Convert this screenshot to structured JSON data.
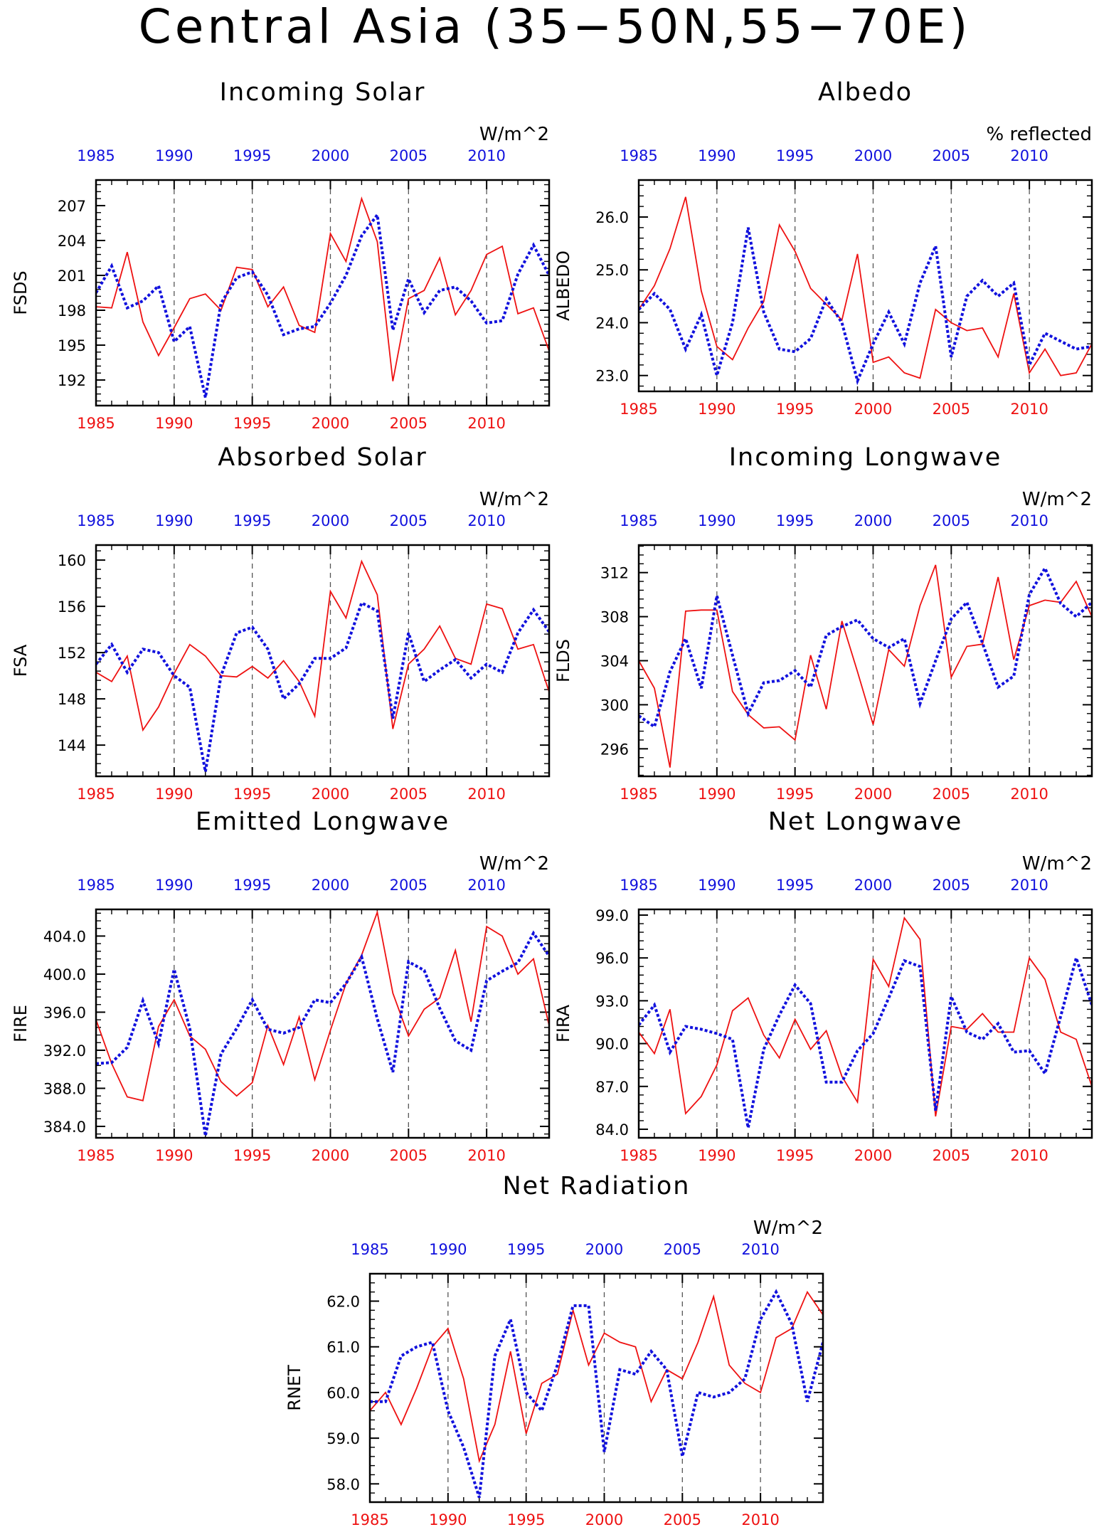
{
  "figure": {
    "title": "Central Asia (35−50N,55−70E)"
  },
  "colors": {
    "series1": "#ee1111",
    "series2": "#1111dd",
    "axis": "#000000"
  },
  "chart_data": [
    {
      "type": "line",
      "title": "Incoming Solar",
      "unit_label": "W/m^2",
      "ylabel": "FSDS",
      "xlim": [
        1985,
        2014
      ],
      "ylim": [
        189.8,
        209.2
      ],
      "yticks": [
        192,
        195,
        198,
        201,
        204,
        207
      ],
      "ytick_labels": [
        "192",
        "195",
        "198",
        "201",
        "204",
        "207"
      ],
      "xticks": [
        1985,
        1990,
        1995,
        2000,
        2005,
        2010
      ],
      "xtick_labels": [
        "1985",
        "1990",
        "1995",
        "2000",
        "2005",
        "2010"
      ],
      "gridlines_x": [
        1990,
        1995,
        2000,
        2005,
        2010
      ],
      "x": [
        1985,
        1986,
        1987,
        1988,
        1989,
        1990,
        1991,
        1992,
        1993,
        1994,
        1995,
        1996,
        1997,
        1998,
        1999,
        2000,
        2001,
        2002,
        2003,
        2004,
        2005,
        2006,
        2007,
        2008,
        2009,
        2010,
        2011,
        2012,
        2013,
        2014
      ],
      "series": [
        {
          "style": "solid",
          "values": [
            198.3,
            198.2,
            203.0,
            197.0,
            194.1,
            196.5,
            199.0,
            199.4,
            198.0,
            201.7,
            201.5,
            198.3,
            200.0,
            196.7,
            196.1,
            204.6,
            202.2,
            207.6,
            203.9,
            191.9,
            199.0,
            199.7,
            202.5,
            197.6,
            199.7,
            202.8,
            203.5,
            197.7,
            198.2,
            194.5
          ]
        },
        {
          "style": "dotted",
          "values": [
            199.5,
            201.8,
            198.2,
            198.8,
            200.1,
            195.3,
            196.6,
            190.5,
            198.6,
            200.8,
            201.3,
            199.3,
            195.9,
            196.4,
            196.6,
            198.6,
            201.0,
            204.4,
            206.2,
            196.3,
            200.7,
            197.8,
            199.7,
            200.0,
            198.8,
            196.9,
            197.1,
            201.1,
            203.6,
            201.0
          ]
        }
      ]
    },
    {
      "type": "line",
      "title": "Albedo",
      "unit_label": "% reflected",
      "ylabel": "ALBEDO",
      "xlim": [
        1985,
        2014
      ],
      "ylim": [
        22.7,
        26.7
      ],
      "yticks": [
        23.0,
        24.0,
        25.0,
        26.0
      ],
      "ytick_labels": [
        "23.0",
        "24.0",
        "25.0",
        "26.0"
      ],
      "xticks": [
        1985,
        1990,
        1995,
        2000,
        2005,
        2010
      ],
      "xtick_labels": [
        "1985",
        "1990",
        "1995",
        "2000",
        "2005",
        "2010"
      ],
      "gridlines_x": [
        1990,
        1995,
        2000,
        2005,
        2010
      ],
      "x": [
        1985,
        1986,
        1987,
        1988,
        1989,
        1990,
        1991,
        1992,
        1993,
        1994,
        1995,
        1996,
        1997,
        1998,
        1999,
        2000,
        2001,
        2002,
        2003,
        2004,
        2005,
        2006,
        2007,
        2008,
        2009,
        2010,
        2011,
        2012,
        2013,
        2014
      ],
      "series": [
        {
          "style": "solid",
          "values": [
            24.25,
            24.7,
            25.4,
            26.38,
            24.6,
            23.55,
            23.3,
            23.9,
            24.4,
            25.85,
            25.35,
            24.65,
            24.35,
            24.05,
            25.3,
            23.25,
            23.35,
            23.05,
            22.95,
            24.25,
            24.0,
            23.85,
            23.9,
            23.35,
            24.55,
            23.05,
            23.5,
            23.0,
            23.05,
            23.6
          ]
        },
        {
          "style": "dotted",
          "values": [
            24.25,
            24.55,
            24.25,
            23.5,
            24.15,
            23.0,
            24.0,
            25.8,
            24.2,
            23.5,
            23.45,
            23.7,
            24.45,
            24.0,
            22.9,
            23.6,
            24.2,
            23.6,
            24.75,
            25.45,
            23.35,
            24.5,
            24.8,
            24.5,
            24.75,
            23.2,
            23.8,
            23.65,
            23.5,
            23.55
          ]
        }
      ]
    },
    {
      "type": "line",
      "title": "Absorbed Solar",
      "unit_label": "W/m^2",
      "ylabel": "FSA",
      "xlim": [
        1985,
        2014
      ],
      "ylim": [
        141.3,
        161.3
      ],
      "yticks": [
        144,
        148,
        152,
        156,
        160
      ],
      "ytick_labels": [
        "144",
        "148",
        "152",
        "156",
        "160"
      ],
      "xticks": [
        1985,
        1990,
        1995,
        2000,
        2005,
        2010
      ],
      "xtick_labels": [
        "1985",
        "1990",
        "1995",
        "2000",
        "2005",
        "2010"
      ],
      "gridlines_x": [
        1990,
        1995,
        2000,
        2005,
        2010
      ],
      "x": [
        1985,
        1986,
        1987,
        1988,
        1989,
        1990,
        1991,
        1992,
        1993,
        1994,
        1995,
        1996,
        1997,
        1998,
        1999,
        2000,
        2001,
        2002,
        2003,
        2004,
        2005,
        2006,
        2007,
        2008,
        2009,
        2010,
        2011,
        2012,
        2013,
        2014
      ],
      "series": [
        {
          "style": "solid",
          "values": [
            150.3,
            149.5,
            151.7,
            145.3,
            147.3,
            150.2,
            152.7,
            151.7,
            150.0,
            149.9,
            150.8,
            149.8,
            151.3,
            149.5,
            146.5,
            157.3,
            155.0,
            159.9,
            157.0,
            145.4,
            151.0,
            152.3,
            154.3,
            151.5,
            151.0,
            156.2,
            155.8,
            152.3,
            152.7,
            148.6
          ]
        },
        {
          "style": "dotted",
          "values": [
            151.0,
            152.7,
            150.3,
            152.3,
            152.0,
            150.0,
            149.0,
            141.7,
            150.0,
            153.7,
            154.2,
            152.3,
            148.0,
            149.3,
            151.5,
            151.5,
            152.4,
            156.3,
            155.6,
            146.3,
            153.7,
            149.5,
            150.5,
            151.4,
            149.8,
            151.0,
            150.3,
            153.7,
            155.7,
            153.8
          ]
        }
      ]
    },
    {
      "type": "line",
      "title": "Incoming Longwave",
      "unit_label": "W/m^2",
      "ylabel": "FLDS",
      "xlim": [
        1985,
        2014
      ],
      "ylim": [
        293.5,
        314.5
      ],
      "yticks": [
        296,
        300,
        304,
        308,
        312
      ],
      "ytick_labels": [
        "296",
        "300",
        "304",
        "308",
        "312"
      ],
      "xticks": [
        1985,
        1990,
        1995,
        2000,
        2005,
        2010
      ],
      "xtick_labels": [
        "1985",
        "1990",
        "1995",
        "2000",
        "2005",
        "2010"
      ],
      "gridlines_x": [
        1990,
        1995,
        2000,
        2005,
        2010
      ],
      "x": [
        1985,
        1986,
        1987,
        1988,
        1989,
        1990,
        1991,
        1992,
        1993,
        1994,
        1995,
        1996,
        1997,
        1998,
        1999,
        2000,
        2001,
        2002,
        2003,
        2004,
        2005,
        2006,
        2007,
        2008,
        2009,
        2010,
        2011,
        2012,
        2013,
        2014
      ],
      "series": [
        {
          "style": "solid",
          "values": [
            304.0,
            301.5,
            294.3,
            308.5,
            308.6,
            308.6,
            301.2,
            299.1,
            297.9,
            298.0,
            296.8,
            304.5,
            299.6,
            307.6,
            303.0,
            298.2,
            305.0,
            303.5,
            309.0,
            312.7,
            302.5,
            305.3,
            305.5,
            311.6,
            304.1,
            309.0,
            309.5,
            309.3,
            311.2,
            308.0
          ]
        },
        {
          "style": "dotted",
          "values": [
            299.0,
            298.0,
            303.0,
            306.0,
            301.5,
            309.9,
            304.5,
            299.2,
            302.0,
            302.2,
            303.1,
            301.6,
            306.3,
            307.1,
            307.7,
            306.0,
            305.2,
            306.0,
            300.1,
            304.0,
            307.8,
            309.3,
            305.6,
            301.6,
            302.6,
            310.0,
            312.4,
            309.2,
            308.0,
            309.3
          ]
        }
      ]
    },
    {
      "type": "line",
      "title": "Emitted Longwave",
      "unit_label": "W/m^2",
      "ylabel": "FIRE",
      "xlim": [
        1985,
        2014
      ],
      "ylim": [
        382.8,
        406.8
      ],
      "yticks": [
        384.0,
        388.0,
        392.0,
        396.0,
        400.0,
        404.0
      ],
      "ytick_labels": [
        "384.0",
        "388.0",
        "392.0",
        "396.0",
        "400.0",
        "404.0"
      ],
      "xticks": [
        1985,
        1990,
        1995,
        2000,
        2005,
        2010
      ],
      "xtick_labels": [
        "1985",
        "1990",
        "1995",
        "2000",
        "2005",
        "2010"
      ],
      "gridlines_x": [
        1990,
        1995,
        2000,
        2005,
        2010
      ],
      "x": [
        1985,
        1986,
        1987,
        1988,
        1989,
        1990,
        1991,
        1992,
        1993,
        1994,
        1995,
        1996,
        1997,
        1998,
        1999,
        2000,
        2001,
        2002,
        2003,
        2004,
        2005,
        2006,
        2007,
        2008,
        2009,
        2010,
        2011,
        2012,
        2013,
        2014
      ],
      "series": [
        {
          "style": "solid",
          "values": [
            395.2,
            390.6,
            387.1,
            386.7,
            394.5,
            397.3,
            393.5,
            392.1,
            388.7,
            387.2,
            388.6,
            394.6,
            390.5,
            395.5,
            388.9,
            394.1,
            399.0,
            402.0,
            406.5,
            398.0,
            393.5,
            396.3,
            397.5,
            402.5,
            395.0,
            405.0,
            404.0,
            400.0,
            401.6,
            394.6
          ]
        },
        {
          "style": "dotted",
          "values": [
            390.6,
            390.7,
            392.3,
            397.2,
            392.7,
            400.5,
            394.3,
            383.0,
            391.6,
            394.3,
            397.3,
            394.2,
            393.8,
            394.4,
            397.3,
            397.0,
            399.0,
            401.8,
            395.3,
            389.7,
            401.3,
            400.4,
            396.4,
            393.0,
            392.0,
            399.3,
            400.3,
            401.2,
            404.3,
            401.9
          ]
        }
      ]
    },
    {
      "type": "line",
      "title": "Net Longwave",
      "unit_label": "W/m^2",
      "ylabel": "FIRA",
      "xlim": [
        1985,
        2014
      ],
      "ylim": [
        83.4,
        99.4
      ],
      "yticks": [
        84.0,
        87.0,
        90.0,
        93.0,
        96.0,
        99.0
      ],
      "ytick_labels": [
        "84.0",
        "87.0",
        "90.0",
        "93.0",
        "96.0",
        "99.0"
      ],
      "xticks": [
        1985,
        1990,
        1995,
        2000,
        2005,
        2010
      ],
      "xtick_labels": [
        "1985",
        "1990",
        "1995",
        "2000",
        "2005",
        "2010"
      ],
      "gridlines_x": [
        1990,
        1995,
        2000,
        2005,
        2010
      ],
      "x": [
        1985,
        1986,
        1987,
        1988,
        1989,
        1990,
        1991,
        1992,
        1993,
        1994,
        1995,
        1996,
        1997,
        1998,
        1999,
        2000,
        2001,
        2002,
        2003,
        2004,
        2005,
        2006,
        2007,
        2008,
        2009,
        2010,
        2011,
        2012,
        2013,
        2014
      ],
      "series": [
        {
          "style": "solid",
          "values": [
            90.8,
            89.3,
            92.4,
            85.1,
            86.3,
            88.5,
            92.3,
            93.2,
            90.6,
            89.0,
            91.7,
            89.6,
            90.9,
            87.7,
            85.9,
            95.9,
            94.0,
            98.8,
            97.3,
            84.9,
            91.2,
            91.0,
            92.1,
            90.8,
            90.8,
            96.0,
            94.5,
            90.8,
            90.3,
            87.0
          ]
        },
        {
          "style": "dotted",
          "values": [
            91.3,
            92.7,
            89.4,
            91.2,
            91.0,
            90.7,
            90.3,
            84.1,
            89.6,
            92.0,
            94.1,
            92.8,
            87.3,
            87.3,
            89.5,
            90.7,
            93.2,
            95.8,
            95.4,
            85.3,
            93.3,
            90.8,
            90.3,
            91.4,
            89.4,
            89.5,
            87.9,
            91.9,
            96.0,
            92.7
          ]
        }
      ]
    },
    {
      "type": "line",
      "title": "Net Radiation",
      "unit_label": "W/m^2",
      "ylabel": "RNET",
      "xlim": [
        1985,
        2014
      ],
      "ylim": [
        57.6,
        62.6
      ],
      "yticks": [
        58.0,
        59.0,
        60.0,
        61.0,
        62.0
      ],
      "ytick_labels": [
        "58.0",
        "59.0",
        "60.0",
        "61.0",
        "62.0"
      ],
      "xticks": [
        1985,
        1990,
        1995,
        2000,
        2005,
        2010
      ],
      "xtick_labels": [
        "1985",
        "1990",
        "1995",
        "2000",
        "2005",
        "2010"
      ],
      "gridlines_x": [
        1990,
        1995,
        2000,
        2005,
        2010
      ],
      "x": [
        1985,
        1986,
        1987,
        1988,
        1989,
        1990,
        1991,
        1992,
        1993,
        1994,
        1995,
        1996,
        1997,
        1998,
        1999,
        2000,
        2001,
        2002,
        2003,
        2004,
        2005,
        2006,
        2007,
        2008,
        2009,
        2010,
        2011,
        2012,
        2013,
        2014
      ],
      "series": [
        {
          "style": "solid",
          "values": [
            59.6,
            60.0,
            59.3,
            60.1,
            61.0,
            61.4,
            60.3,
            58.5,
            59.3,
            60.9,
            59.1,
            60.2,
            60.4,
            61.8,
            60.6,
            61.3,
            61.1,
            61.0,
            59.8,
            60.5,
            60.3,
            61.1,
            62.1,
            60.6,
            60.2,
            60.0,
            61.2,
            61.4,
            62.2,
            61.7
          ]
        },
        {
          "style": "dotted",
          "values": [
            59.8,
            59.8,
            60.8,
            61.0,
            61.1,
            59.6,
            58.8,
            57.7,
            60.8,
            61.6,
            60.0,
            59.6,
            60.6,
            61.9,
            61.9,
            58.7,
            60.5,
            60.4,
            60.9,
            60.5,
            58.6,
            60.0,
            59.9,
            60.0,
            60.3,
            61.6,
            62.2,
            61.5,
            59.8,
            61.1
          ]
        }
      ]
    }
  ]
}
